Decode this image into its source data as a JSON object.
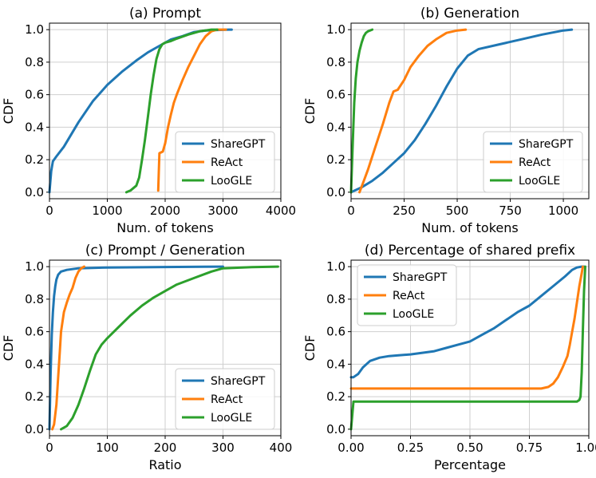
{
  "colors": {
    "ShareGPT": "#1f77b4",
    "ReAct": "#ff7f0e",
    "LooGLE": "#2ca02c"
  },
  "chart_data": [
    {
      "type": "line",
      "title": "(a) Prompt",
      "xlabel": "Num. of tokens",
      "ylabel": "CDF",
      "xlim": [
        0,
        4000
      ],
      "ylim": [
        -0.04,
        1.04
      ],
      "xticks": [
        0,
        1000,
        2000,
        3000,
        4000
      ],
      "xtick_labels": [
        "0",
        "1000",
        "2000",
        "3000",
        "4000"
      ],
      "yticks": [
        0,
        0.2,
        0.4,
        0.6,
        0.8,
        1.0
      ],
      "ytick_labels": [
        "0.0",
        "0.2",
        "0.4",
        "0.6",
        "0.8",
        "1.0"
      ],
      "legend_position": "lower-right",
      "series": [
        {
          "name": "ShareGPT",
          "x": [
            0,
            30,
            60,
            120,
            250,
            500,
            750,
            1000,
            1250,
            1500,
            1700,
            1900,
            2100,
            2300,
            2500,
            2700,
            2900,
            3100,
            3150
          ],
          "y": [
            0,
            0.13,
            0.19,
            0.22,
            0.28,
            0.43,
            0.56,
            0.66,
            0.74,
            0.81,
            0.86,
            0.9,
            0.94,
            0.96,
            0.985,
            0.995,
            0.998,
            1.0,
            1.0
          ]
        },
        {
          "name": "ReAct",
          "x": [
            1880,
            1890,
            1900,
            1960,
            2000,
            2050,
            2100,
            2150,
            2200,
            2300,
            2400,
            2500,
            2600,
            2700,
            2800,
            2900,
            3050
          ],
          "y": [
            0.01,
            0.12,
            0.24,
            0.25,
            0.3,
            0.4,
            0.48,
            0.55,
            0.6,
            0.69,
            0.77,
            0.84,
            0.91,
            0.96,
            0.99,
            1.0,
            1.0
          ]
        },
        {
          "name": "LooGLE",
          "x": [
            1330,
            1400,
            1500,
            1550,
            1600,
            1650,
            1700,
            1750,
            1800,
            1850,
            1900,
            1950,
            2000,
            2100,
            2200,
            2400,
            2600,
            2800,
            2900
          ],
          "y": [
            0.0,
            0.01,
            0.04,
            0.09,
            0.2,
            0.32,
            0.46,
            0.6,
            0.72,
            0.82,
            0.88,
            0.91,
            0.92,
            0.93,
            0.945,
            0.97,
            0.99,
            1.0,
            1.0
          ]
        }
      ]
    },
    {
      "type": "line",
      "title": "(b) Generation",
      "xlabel": "Num. of tokens",
      "ylabel": "CDF",
      "xlim": [
        0,
        1120
      ],
      "ylim": [
        -0.04,
        1.04
      ],
      "xticks": [
        0,
        250,
        500,
        750,
        1000
      ],
      "xtick_labels": [
        "0",
        "250",
        "500",
        "750",
        "1000"
      ],
      "yticks": [
        0,
        0.2,
        0.4,
        0.6,
        0.8,
        1.0
      ],
      "ytick_labels": [
        "0.0",
        "0.2",
        "0.4",
        "0.6",
        "0.8",
        "1.0"
      ],
      "legend_position": "lower-right",
      "series": [
        {
          "name": "ShareGPT",
          "x": [
            0,
            50,
            100,
            150,
            200,
            250,
            300,
            350,
            400,
            450,
            500,
            550,
            600,
            700,
            800,
            900,
            1000,
            1040
          ],
          "y": [
            0,
            0.03,
            0.07,
            0.12,
            0.18,
            0.24,
            0.32,
            0.42,
            0.53,
            0.65,
            0.76,
            0.84,
            0.88,
            0.91,
            0.94,
            0.97,
            0.995,
            1.0
          ]
        },
        {
          "name": "ReAct",
          "x": [
            40,
            60,
            80,
            100,
            120,
            150,
            180,
            200,
            220,
            250,
            280,
            320,
            360,
            400,
            450,
            500,
            540
          ],
          "y": [
            0.0,
            0.07,
            0.14,
            0.22,
            0.3,
            0.42,
            0.55,
            0.62,
            0.63,
            0.69,
            0.77,
            0.84,
            0.9,
            0.94,
            0.98,
            0.995,
            1.0
          ]
        },
        {
          "name": "LooGLE",
          "x": [
            0,
            8,
            15,
            22,
            30,
            40,
            50,
            60,
            70,
            80,
            100
          ],
          "y": [
            0,
            0.3,
            0.55,
            0.7,
            0.8,
            0.87,
            0.92,
            0.96,
            0.98,
            0.99,
            1.0
          ]
        }
      ]
    },
    {
      "type": "line",
      "title": "(c) Prompt / Generation",
      "xlabel": "Ratio",
      "ylabel": "CDF",
      "xlim": [
        0,
        400
      ],
      "ylim": [
        -0.04,
        1.04
      ],
      "xticks": [
        0,
        100,
        200,
        300,
        400
      ],
      "xtick_labels": [
        "0",
        "100",
        "200",
        "300",
        "400"
      ],
      "yticks": [
        0,
        0.2,
        0.4,
        0.6,
        0.8,
        1.0
      ],
      "ytick_labels": [
        "0.0",
        "0.2",
        "0.4",
        "0.6",
        "0.8",
        "1.0"
      ],
      "legend_position": "lower-right",
      "series": [
        {
          "name": "ShareGPT",
          "x": [
            0,
            2,
            4,
            6,
            8,
            10,
            12,
            15,
            20,
            30,
            50,
            100,
            200,
            300
          ],
          "y": [
            0,
            0.35,
            0.58,
            0.72,
            0.82,
            0.88,
            0.92,
            0.95,
            0.97,
            0.98,
            0.99,
            0.995,
            0.998,
            1.0
          ]
        },
        {
          "name": "ReAct",
          "x": [
            5,
            8,
            12,
            15,
            18,
            20,
            25,
            30,
            35,
            40,
            45,
            50,
            55,
            60
          ],
          "y": [
            0.0,
            0.03,
            0.15,
            0.32,
            0.48,
            0.6,
            0.72,
            0.78,
            0.83,
            0.87,
            0.93,
            0.97,
            0.99,
            1.0
          ]
        },
        {
          "name": "LooGLE",
          "x": [
            20,
            30,
            40,
            50,
            60,
            70,
            80,
            90,
            100,
            120,
            140,
            160,
            180,
            200,
            220,
            250,
            280,
            300,
            350,
            395
          ],
          "y": [
            0.0,
            0.02,
            0.07,
            0.15,
            0.25,
            0.36,
            0.46,
            0.52,
            0.56,
            0.63,
            0.7,
            0.76,
            0.81,
            0.85,
            0.89,
            0.93,
            0.97,
            0.99,
            0.997,
            1.0
          ]
        }
      ]
    },
    {
      "type": "line",
      "title": "(d) Percentage of shared prefix",
      "xlabel": "Percentage",
      "ylabel": "CDF",
      "xlim": [
        0,
        1.0
      ],
      "ylim": [
        -0.04,
        1.04
      ],
      "xticks": [
        0,
        0.25,
        0.5,
        0.75,
        1.0
      ],
      "xtick_labels": [
        "0.00",
        "0.25",
        "0.50",
        "0.75",
        "1.00"
      ],
      "yticks": [
        0,
        0.2,
        0.4,
        0.6,
        0.8,
        1.0
      ],
      "ytick_labels": [
        "0.0",
        "0.2",
        "0.4",
        "0.6",
        "0.8",
        "1.0"
      ],
      "legend_position": "upper-left",
      "series": [
        {
          "name": "ShareGPT",
          "x": [
            0,
            0.01,
            0.03,
            0.05,
            0.08,
            0.12,
            0.16,
            0.2,
            0.25,
            0.3,
            0.35,
            0.4,
            0.45,
            0.5,
            0.55,
            0.6,
            0.65,
            0.7,
            0.75,
            0.8,
            0.85,
            0.9,
            0.93,
            0.95,
            0.97,
            0.98
          ],
          "y": [
            0.32,
            0.32,
            0.34,
            0.38,
            0.42,
            0.44,
            0.45,
            0.455,
            0.46,
            0.47,
            0.48,
            0.5,
            0.52,
            0.54,
            0.58,
            0.62,
            0.67,
            0.72,
            0.76,
            0.82,
            0.88,
            0.94,
            0.98,
            0.995,
            1.0,
            1.0
          ]
        },
        {
          "name": "ReAct",
          "x": [
            0,
            0.1,
            0.3,
            0.5,
            0.7,
            0.8,
            0.83,
            0.85,
            0.87,
            0.89,
            0.91,
            0.92,
            0.93,
            0.94,
            0.95,
            0.96,
            0.97,
            0.975
          ],
          "y": [
            0.25,
            0.25,
            0.25,
            0.25,
            0.25,
            0.25,
            0.26,
            0.28,
            0.32,
            0.38,
            0.45,
            0.52,
            0.6,
            0.68,
            0.78,
            0.88,
            0.96,
            1.0
          ]
        },
        {
          "name": "LooGLE",
          "x": [
            0,
            0.01,
            0.3,
            0.6,
            0.9,
            0.95,
            0.96,
            0.965,
            0.97,
            0.975,
            0.98,
            0.985
          ],
          "y": [
            0,
            0.17,
            0.17,
            0.17,
            0.17,
            0.17,
            0.18,
            0.2,
            0.35,
            0.6,
            0.85,
            1.0
          ]
        }
      ]
    }
  ]
}
